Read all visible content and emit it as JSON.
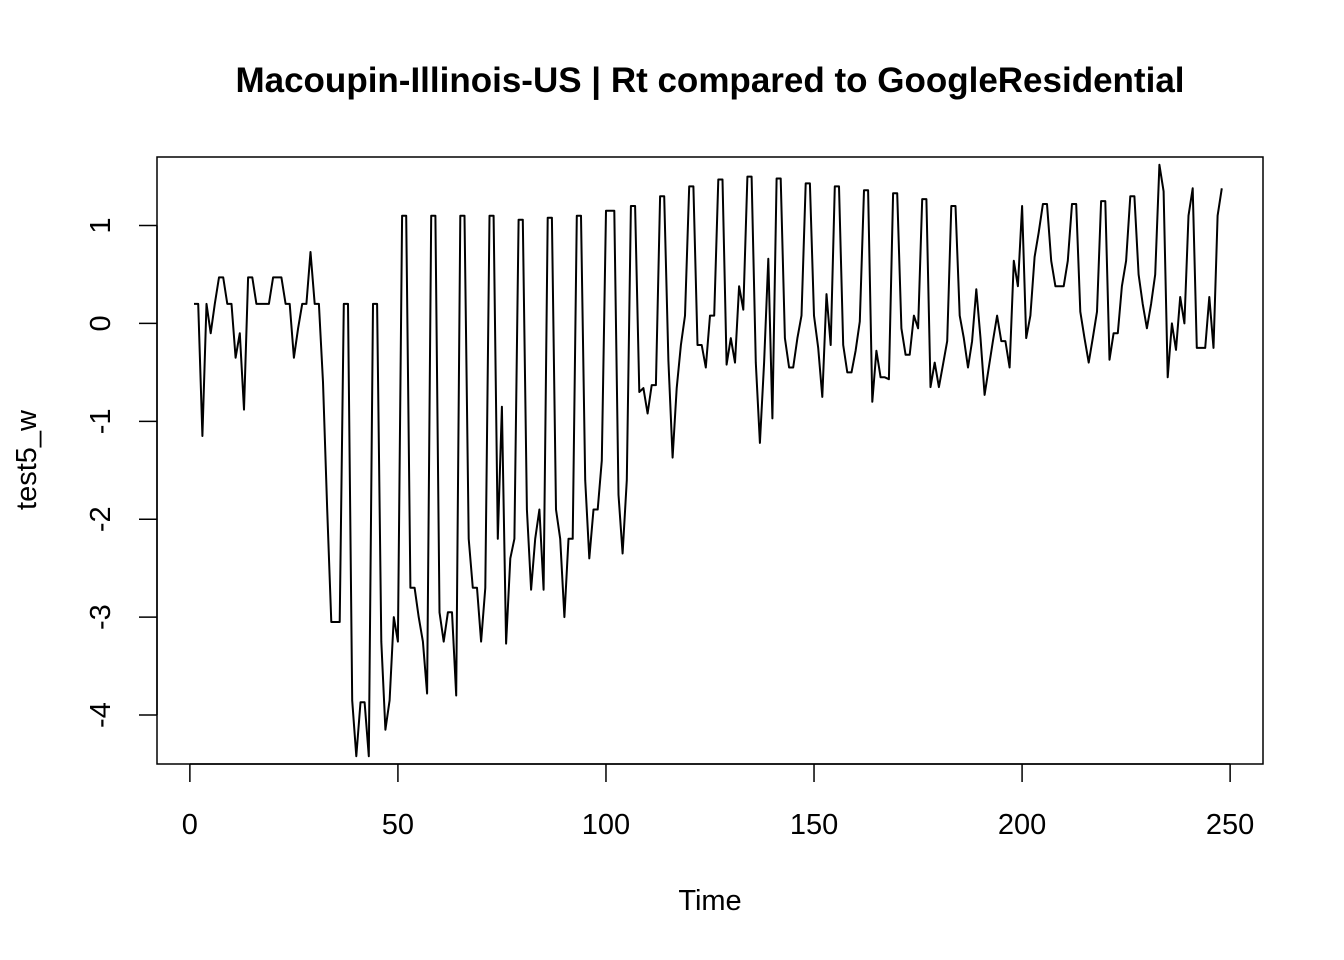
{
  "chart_data": {
    "type": "line",
    "title": "Macoupin-Illinois-US | Rt compared to GoogleResidential",
    "xlabel": "Time",
    "ylabel": "test5_w",
    "xlim": [
      -7.9,
      257.9
    ],
    "ylim": [
      -4.5,
      1.7
    ],
    "xticks": [
      0,
      50,
      100,
      150,
      200,
      250
    ],
    "yticks": [
      -4,
      -3,
      -2,
      -1,
      0,
      1
    ],
    "grid": false,
    "legend": "none",
    "line_color": "#000000",
    "series": [
      {
        "x": [
          1,
          2,
          3,
          4,
          5,
          6,
          7,
          8,
          9,
          10,
          11,
          12,
          13,
          14,
          15,
          16,
          17,
          18,
          19,
          20,
          21,
          22,
          23,
          24,
          25,
          26,
          27,
          28,
          29,
          30,
          31,
          32,
          33,
          34,
          35,
          36,
          37,
          38,
          39,
          40,
          41,
          42,
          43,
          44,
          45,
          46,
          47,
          48,
          49,
          50,
          51,
          52,
          53,
          54,
          55,
          56,
          57,
          58,
          59,
          60,
          61,
          62,
          63,
          64,
          65,
          66,
          67,
          68,
          69,
          70,
          71,
          72,
          73,
          74,
          75,
          76,
          77,
          78,
          79,
          80,
          81,
          82,
          83,
          84,
          85,
          86,
          87,
          88,
          89,
          90,
          91,
          92,
          93,
          94,
          95,
          96,
          97,
          98,
          99,
          100,
          101,
          102,
          103,
          104,
          105,
          106,
          107,
          108,
          109,
          110,
          111,
          112,
          113,
          114,
          115,
          116,
          117,
          118,
          119,
          120,
          121,
          122,
          123,
          124,
          125,
          126,
          127,
          128,
          129,
          130,
          131,
          132,
          133,
          134,
          135,
          136,
          137,
          138,
          139,
          140,
          141,
          142,
          143,
          144,
          145,
          146,
          147,
          148,
          149,
          150,
          151,
          152,
          153,
          154,
          155,
          156,
          157,
          158,
          159,
          160,
          161,
          162,
          163,
          164,
          165,
          166,
          167,
          168,
          169,
          170,
          171,
          172,
          173,
          174,
          175,
          176,
          177,
          178,
          179,
          180,
          181,
          182,
          183,
          184,
          185,
          186,
          187,
          188,
          189,
          190,
          191,
          192,
          193,
          194,
          195,
          196,
          197,
          198,
          199,
          200,
          201,
          202,
          203,
          204,
          205,
          206,
          207,
          208,
          209,
          210,
          211,
          212,
          213,
          214,
          215,
          216,
          217,
          218,
          219,
          220,
          221,
          222,
          223,
          224,
          225,
          226,
          227,
          228,
          229,
          230,
          231,
          232,
          233,
          234,
          235,
          236,
          237,
          238,
          239,
          240,
          241,
          242,
          243,
          244,
          245,
          246,
          247,
          248
        ],
        "y": [
          0.2,
          0.2,
          -1.15,
          0.2,
          -0.1,
          0.2,
          0.47,
          0.47,
          0.2,
          0.2,
          -0.35,
          -0.1,
          -0.88,
          0.47,
          0.47,
          0.2,
          0.2,
          0.2,
          0.2,
          0.47,
          0.47,
          0.47,
          0.2,
          0.2,
          -0.35,
          -0.05,
          0.2,
          0.2,
          0.73,
          0.2,
          0.2,
          -0.6,
          -1.9,
          -3.05,
          -3.05,
          -3.05,
          0.2,
          0.2,
          -3.85,
          -4.42,
          -3.87,
          -3.87,
          -4.42,
          0.2,
          0.2,
          -3.25,
          -4.15,
          -3.85,
          -3.0,
          -3.25,
          1.1,
          1.1,
          -2.7,
          -2.7,
          -3.0,
          -3.25,
          -3.78,
          1.1,
          1.1,
          -2.95,
          -3.25,
          -2.95,
          -2.95,
          -3.8,
          1.1,
          1.1,
          -2.2,
          -2.7,
          -2.7,
          -3.25,
          -2.7,
          1.1,
          1.1,
          -2.2,
          -0.85,
          -3.27,
          -2.4,
          -2.2,
          1.06,
          1.06,
          -1.9,
          -2.72,
          -2.2,
          -1.9,
          -2.72,
          1.08,
          1.08,
          -1.9,
          -2.2,
          -3.0,
          -2.2,
          -2.2,
          1.1,
          1.1,
          -1.6,
          -2.4,
          -1.9,
          -1.9,
          -1.4,
          1.15,
          1.15,
          1.15,
          -1.75,
          -2.35,
          -1.6,
          1.2,
          1.2,
          -0.7,
          -0.66,
          -0.92,
          -0.63,
          -0.63,
          1.3,
          1.3,
          -0.38,
          -1.37,
          -0.66,
          -0.22,
          0.08,
          1.4,
          1.4,
          -0.22,
          -0.22,
          -0.45,
          0.08,
          0.08,
          1.47,
          1.47,
          -0.42,
          -0.15,
          -0.4,
          0.38,
          0.14,
          1.5,
          1.5,
          -0.4,
          -1.22,
          -0.4,
          0.66,
          -0.97,
          1.48,
          1.48,
          -0.15,
          -0.45,
          -0.45,
          -0.15,
          0.08,
          1.43,
          1.43,
          0.08,
          -0.25,
          -0.75,
          0.3,
          -0.22,
          1.4,
          1.4,
          -0.22,
          -0.5,
          -0.5,
          -0.28,
          0.02,
          1.36,
          1.36,
          -0.8,
          -0.28,
          -0.55,
          -0.55,
          -0.57,
          1.33,
          1.33,
          -0.05,
          -0.32,
          -0.32,
          0.08,
          -0.05,
          1.27,
          1.27,
          -0.65,
          -0.4,
          -0.65,
          -0.42,
          -0.18,
          1.2,
          1.2,
          0.08,
          -0.15,
          -0.45,
          -0.18,
          0.35,
          -0.15,
          -0.73,
          -0.45,
          -0.18,
          0.08,
          -0.18,
          -0.18,
          -0.45,
          0.64,
          0.38,
          1.2,
          -0.15,
          0.08,
          0.68,
          0.93,
          1.22,
          1.22,
          0.64,
          0.38,
          0.38,
          0.38,
          0.64,
          1.22,
          1.22,
          0.12,
          -0.15,
          -0.4,
          -0.15,
          0.12,
          1.25,
          1.25,
          -0.37,
          -0.1,
          -0.1,
          0.38,
          0.64,
          1.3,
          1.3,
          0.5,
          0.2,
          -0.05,
          0.2,
          0.5,
          1.62,
          1.35,
          -0.55,
          0.0,
          -0.27,
          0.27,
          0.0,
          1.1,
          1.38,
          -0.25,
          -0.25,
          -0.25,
          0.27,
          -0.25,
          1.1,
          1.38
        ]
      }
    ]
  }
}
